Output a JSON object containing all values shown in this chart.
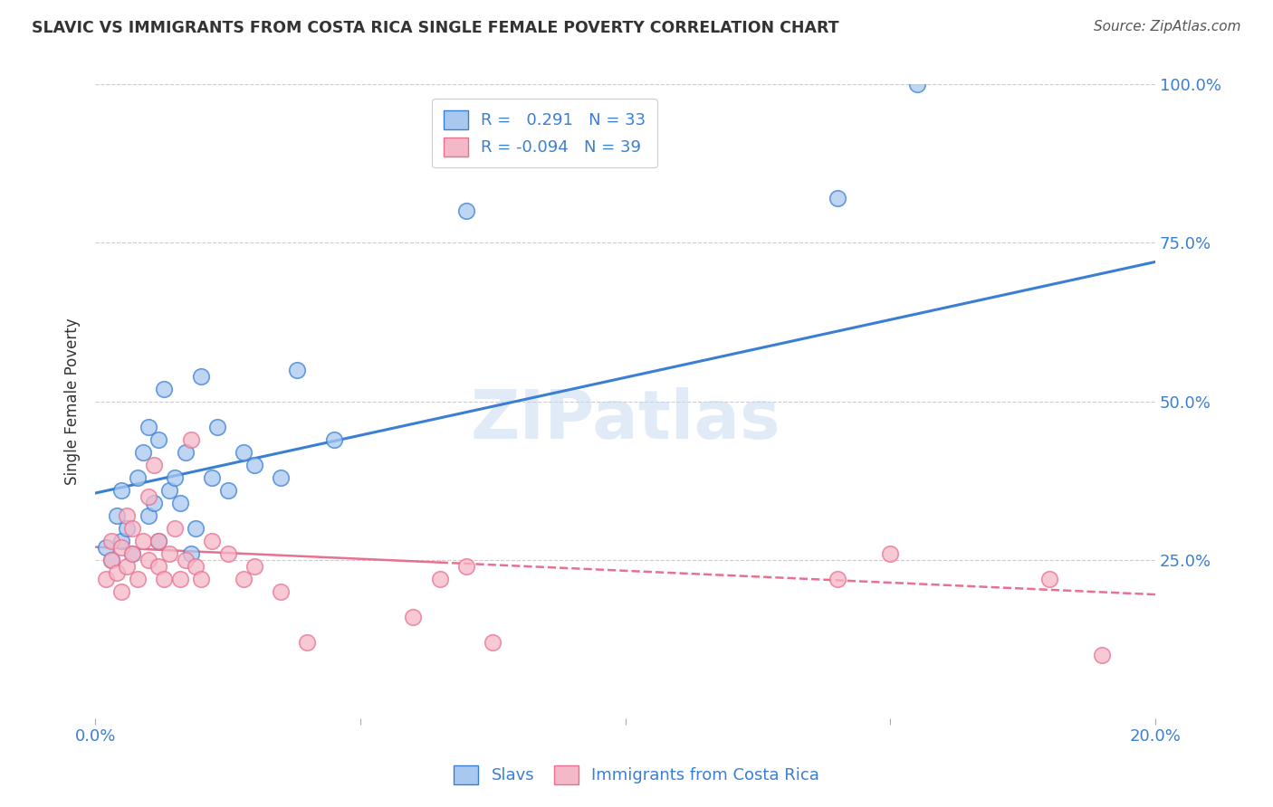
{
  "title": "SLAVIC VS IMMIGRANTS FROM COSTA RICA SINGLE FEMALE POVERTY CORRELATION CHART",
  "source": "Source: ZipAtlas.com",
  "ylabel": "Single Female Poverty",
  "watermark": "ZIPatlas",
  "xlim": [
    0.0,
    0.2
  ],
  "ylim": [
    0.0,
    1.0
  ],
  "y_ticks": [
    0.0,
    0.25,
    0.5,
    0.75,
    1.0
  ],
  "y_tick_labels": [
    "",
    "25.0%",
    "50.0%",
    "75.0%",
    "100.0%"
  ],
  "slavs_color": "#a8c8f0",
  "costa_rica_color": "#f5b8c8",
  "slavs_line_color": "#3a7fd4",
  "costa_rica_line_color": "#e87090",
  "R_slavs": 0.291,
  "N_slavs": 33,
  "R_costa_rica": -0.094,
  "N_costa_rica": 39,
  "legend_label_slavs": "Slavs",
  "legend_label_cr": "Immigrants from Costa Rica",
  "slavs_x": [
    0.002,
    0.003,
    0.004,
    0.005,
    0.005,
    0.006,
    0.007,
    0.008,
    0.009,
    0.01,
    0.01,
    0.011,
    0.012,
    0.012,
    0.013,
    0.014,
    0.015,
    0.016,
    0.017,
    0.018,
    0.019,
    0.02,
    0.022,
    0.023,
    0.025,
    0.028,
    0.03,
    0.035,
    0.038,
    0.045,
    0.07,
    0.14,
    0.155
  ],
  "slavs_y": [
    0.27,
    0.25,
    0.32,
    0.28,
    0.36,
    0.3,
    0.26,
    0.38,
    0.42,
    0.32,
    0.46,
    0.34,
    0.28,
    0.44,
    0.52,
    0.36,
    0.38,
    0.34,
    0.42,
    0.26,
    0.3,
    0.54,
    0.38,
    0.46,
    0.36,
    0.42,
    0.4,
    0.38,
    0.55,
    0.44,
    0.8,
    0.82,
    1.0
  ],
  "cr_x": [
    0.002,
    0.003,
    0.003,
    0.004,
    0.005,
    0.005,
    0.006,
    0.006,
    0.007,
    0.007,
    0.008,
    0.009,
    0.01,
    0.01,
    0.011,
    0.012,
    0.012,
    0.013,
    0.014,
    0.015,
    0.016,
    0.017,
    0.018,
    0.019,
    0.02,
    0.022,
    0.025,
    0.028,
    0.03,
    0.035,
    0.04,
    0.06,
    0.065,
    0.07,
    0.075,
    0.14,
    0.15,
    0.18,
    0.19
  ],
  "cr_y": [
    0.22,
    0.25,
    0.28,
    0.23,
    0.2,
    0.27,
    0.24,
    0.32,
    0.26,
    0.3,
    0.22,
    0.28,
    0.25,
    0.35,
    0.4,
    0.24,
    0.28,
    0.22,
    0.26,
    0.3,
    0.22,
    0.25,
    0.44,
    0.24,
    0.22,
    0.28,
    0.26,
    0.22,
    0.24,
    0.2,
    0.12,
    0.16,
    0.22,
    0.24,
    0.12,
    0.22,
    0.26,
    0.22,
    0.1
  ],
  "background_color": "#ffffff",
  "grid_color": "#cccccc",
  "axis_label_color": "#3a7fd4",
  "title_color": "#333333",
  "blue_line_y0": 0.355,
  "blue_line_y1": 0.72,
  "pink_line_y0": 0.27,
  "pink_line_y1": 0.195
}
